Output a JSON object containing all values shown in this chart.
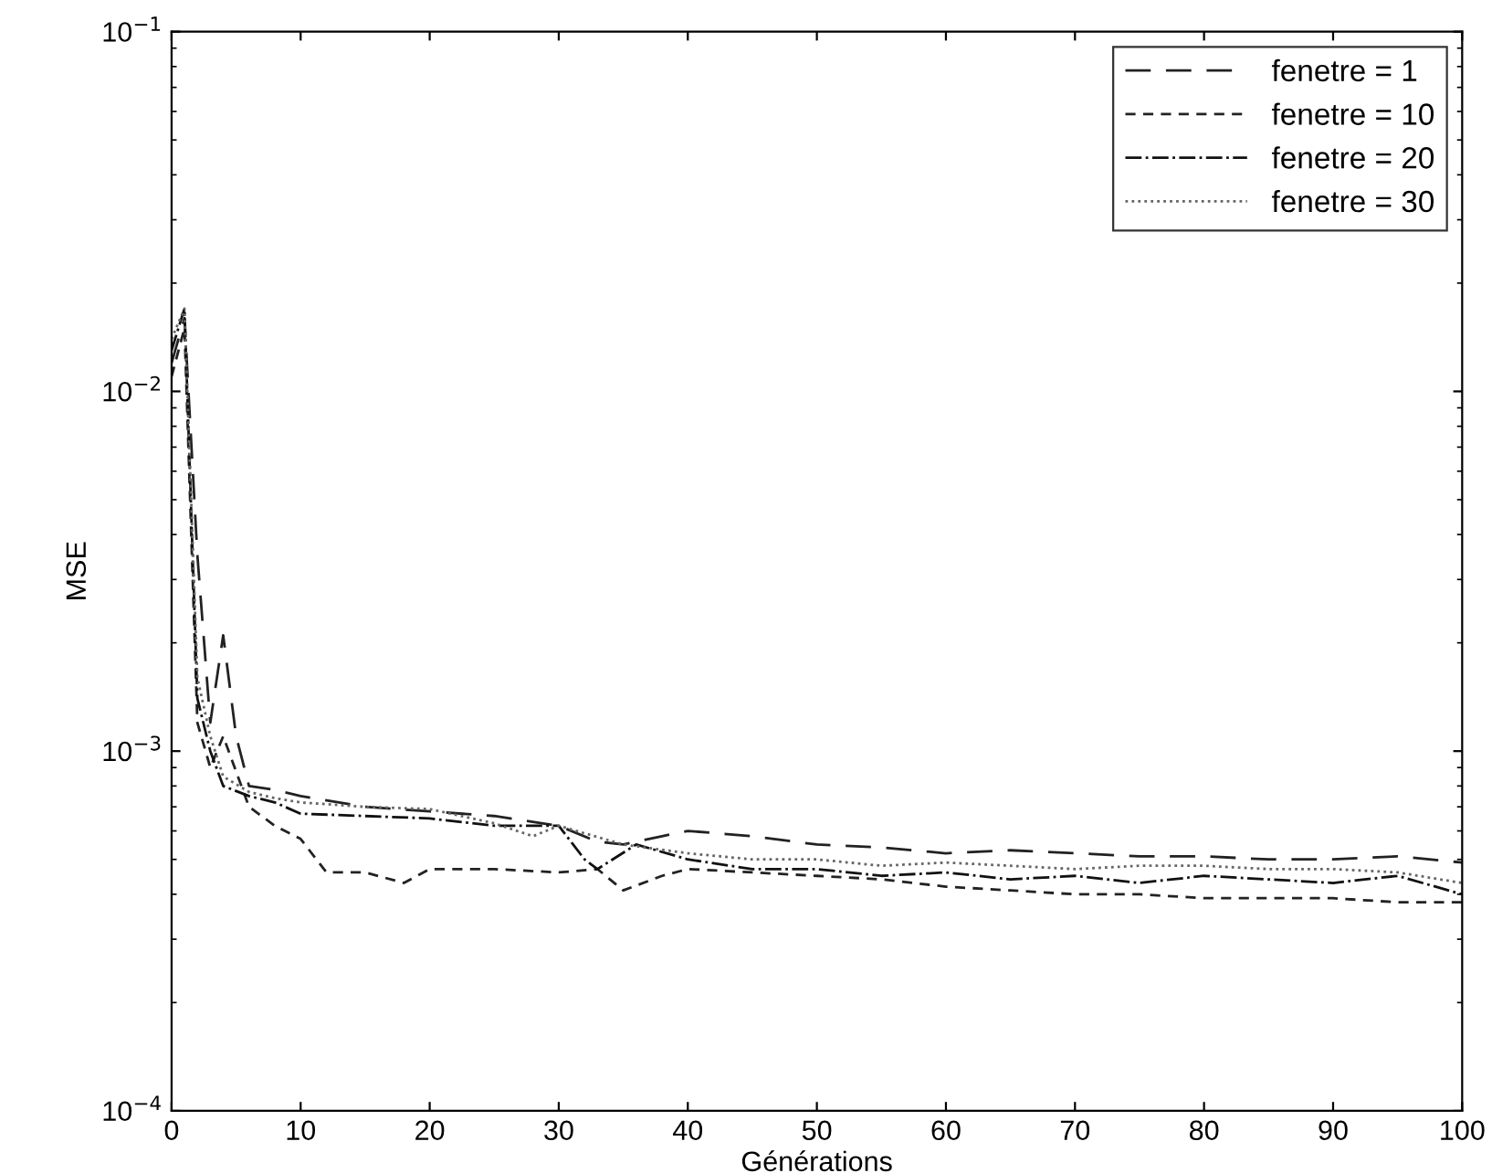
{
  "chart_data": {
    "type": "line",
    "xlabel": "Générations",
    "ylabel": "MSE",
    "xlim": [
      0,
      100
    ],
    "xticks": [
      0,
      10,
      20,
      30,
      40,
      50,
      60,
      70,
      80,
      90,
      100
    ],
    "ylim": [
      0.0001,
      0.1
    ],
    "log": "y",
    "yticks": [
      {
        "value": 0.0001,
        "label": "10$^{−4}$"
      },
      {
        "value": 0.001,
        "label": "10$^{−3}$"
      },
      {
        "value": 0.01,
        "label": "10$^{−2}$"
      },
      {
        "value": 0.1,
        "label": "10$^{−1}$"
      }
    ],
    "grid": false,
    "legend": "top right",
    "series": [
      {
        "name": "fenetre = 1",
        "color": "#222222",
        "line_style": "longdash",
        "x": [
          0,
          1,
          2,
          3,
          4,
          5,
          6,
          8,
          10,
          15,
          20,
          25,
          30,
          33,
          35,
          38,
          40,
          45,
          50,
          55,
          60,
          65,
          70,
          75,
          80,
          85,
          90,
          95,
          100
        ],
        "values": [
          0.012,
          0.016,
          0.0035,
          0.0012,
          0.0021,
          0.0011,
          0.0008,
          0.00078,
          0.00075,
          0.0007,
          0.00068,
          0.00066,
          0.00062,
          0.00056,
          0.00055,
          0.00058,
          0.0006,
          0.00058,
          0.00055,
          0.00054,
          0.00052,
          0.00053,
          0.00052,
          0.00051,
          0.00051,
          0.0005,
          0.0005,
          0.00051,
          0.00049
        ]
      },
      {
        "name": "fenetre = 10",
        "color": "#222222",
        "line_style": "dashed",
        "x": [
          0,
          1,
          2,
          3,
          4,
          6,
          8,
          10,
          12,
          15,
          18,
          20,
          25,
          30,
          33,
          35,
          38,
          40,
          45,
          50,
          55,
          60,
          65,
          70,
          75,
          80,
          85,
          90,
          95,
          100
        ],
        "values": [
          0.011,
          0.015,
          0.0012,
          0.0009,
          0.0011,
          0.0007,
          0.00062,
          0.00057,
          0.00046,
          0.00046,
          0.00043,
          0.00047,
          0.00047,
          0.00046,
          0.00047,
          0.00041,
          0.00045,
          0.00047,
          0.00046,
          0.00045,
          0.00044,
          0.00042,
          0.00041,
          0.0004,
          0.0004,
          0.00039,
          0.00039,
          0.00039,
          0.00038,
          0.00038
        ]
      },
      {
        "name": "fenetre = 20",
        "color": "#111111",
        "line_style": "dashdot",
        "x": [
          0,
          1,
          2,
          3,
          4,
          6,
          8,
          10,
          15,
          20,
          25,
          30,
          32,
          33,
          36,
          40,
          45,
          50,
          55,
          60,
          65,
          70,
          75,
          80,
          85,
          90,
          95,
          100
        ],
        "values": [
          0.013,
          0.017,
          0.0014,
          0.001,
          0.0008,
          0.00075,
          0.00072,
          0.00067,
          0.00066,
          0.00065,
          0.00062,
          0.00062,
          0.0005,
          0.00047,
          0.00055,
          0.0005,
          0.00047,
          0.00047,
          0.00045,
          0.00046,
          0.00044,
          0.00045,
          0.00043,
          0.00045,
          0.00044,
          0.00043,
          0.00045,
          0.0004
        ]
      },
      {
        "name": "fenetre = 30",
        "color": "#666666",
        "line_style": "dotted",
        "x": [
          0,
          1,
          2,
          3,
          4,
          6,
          8,
          10,
          15,
          20,
          25,
          28,
          30,
          35,
          40,
          45,
          50,
          55,
          60,
          65,
          70,
          75,
          80,
          85,
          90,
          95,
          100
        ],
        "values": [
          0.014,
          0.017,
          0.0016,
          0.0011,
          0.00085,
          0.00077,
          0.00074,
          0.00072,
          0.0007,
          0.00069,
          0.00063,
          0.00058,
          0.00062,
          0.00055,
          0.00052,
          0.0005,
          0.0005,
          0.00048,
          0.00049,
          0.00048,
          0.00047,
          0.00048,
          0.00048,
          0.00047,
          0.00047,
          0.00046,
          0.00043
        ]
      }
    ]
  }
}
